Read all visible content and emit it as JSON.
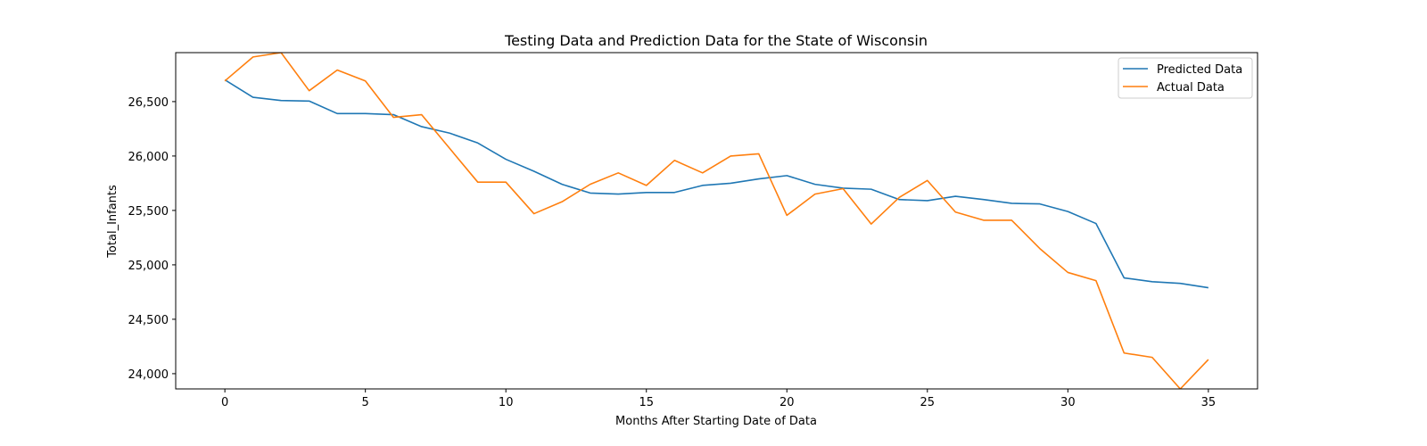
{
  "chart_data": {
    "type": "line",
    "title": "Testing Data and Prediction Data for the State of Wisconsin",
    "xlabel": "Months After Starting Date of Data",
    "ylabel": "Total_Infants",
    "xlim": [
      -1.75,
      36.75
    ],
    "ylim": [
      23860,
      26950
    ],
    "xticks": [
      0,
      5,
      10,
      15,
      20,
      25,
      30,
      35
    ],
    "yticks": [
      24000,
      24500,
      25000,
      25500,
      26000,
      26500
    ],
    "ytick_labels": [
      "24,000",
      "24,500",
      "25,000",
      "25,500",
      "26,000",
      "26,500"
    ],
    "grid": false,
    "legend_position": "top-right",
    "x": [
      0,
      1,
      2,
      3,
      4,
      5,
      6,
      7,
      8,
      9,
      10,
      11,
      12,
      13,
      14,
      15,
      16,
      17,
      18,
      19,
      20,
      21,
      22,
      23,
      24,
      25,
      26,
      27,
      28,
      29,
      30,
      31,
      32,
      33,
      34,
      35
    ],
    "series": [
      {
        "name": "Predicted Data",
        "color": "#1f77b4",
        "values": [
          26700,
          26540,
          26510,
          26505,
          26390,
          26390,
          26380,
          26270,
          26210,
          26120,
          25970,
          25860,
          25740,
          25660,
          25650,
          25665,
          25665,
          25730,
          25750,
          25790,
          25820,
          25740,
          25705,
          25695,
          25600,
          25590,
          25630,
          25600,
          25565,
          25560,
          25490,
          25380,
          24880,
          24845,
          24830,
          24790
        ]
      },
      {
        "name": "Actual Data",
        "color": "#ff7f0e",
        "values": [
          26690,
          26910,
          26950,
          26600,
          26790,
          26690,
          26355,
          26380,
          26070,
          25760,
          25760,
          25470,
          25580,
          25740,
          25845,
          25730,
          25960,
          25845,
          26000,
          26020,
          25455,
          25650,
          25700,
          25375,
          25620,
          25775,
          25485,
          25410,
          25410,
          25150,
          24930,
          24855,
          24190,
          24150,
          23860,
          24130
        ]
      }
    ]
  }
}
